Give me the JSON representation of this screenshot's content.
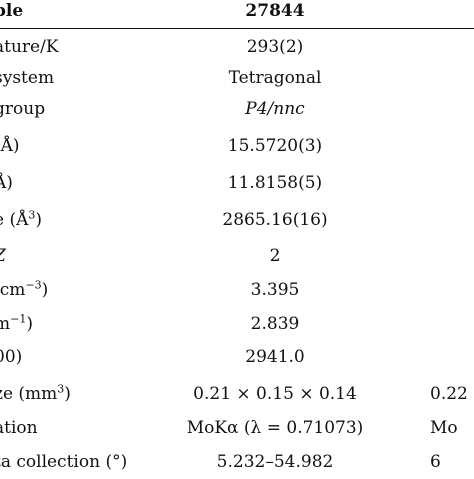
{
  "table": {
    "header": {
      "label": "ple",
      "col1": "27844"
    },
    "rows": [
      {
        "label": "ature/K",
        "col1": "293(2)",
        "col2": ""
      },
      {
        "label": "system",
        "col1": "Tetragonal",
        "col2": ""
      },
      {
        "label": "group",
        "col1": "P4/nnc",
        "col2": ""
      },
      {
        "label": "(Å)",
        "col1": "15.5720(3)",
        "col2": ""
      },
      {
        "label": "Å)",
        "col1": "11.8158(5)",
        "col2": ""
      },
      {
        "label": "e (Å",
        "label_sup": "3",
        "label_post": ")",
        "col1": "2865.16(16)",
        "col2": ""
      },
      {
        "label": "Z",
        "col1": "2",
        "col2": ""
      },
      {
        "label": "/cm",
        "label_sup": "−3",
        "label_post": ")",
        "col1": "3.395",
        "col2": ""
      },
      {
        "label": "m",
        "label_sup": "−1",
        "label_post": ")",
        "col1": "2.839",
        "col2": ""
      },
      {
        "label": "00)",
        "col1": "2941.0",
        "col2": ""
      },
      {
        "label": "ze (mm",
        "label_sup": "3",
        "label_post": ")",
        "col1": "0.21 × 0.15 × 0.14",
        "col2": "0.22"
      },
      {
        "label": "ation",
        "col1": "MoKα (λ = 0.71073)",
        "col2": "Mo"
      },
      {
        "label": "ta collection (°)",
        "col1": "5.232–54.982",
        "col2": "6"
      }
    ]
  }
}
